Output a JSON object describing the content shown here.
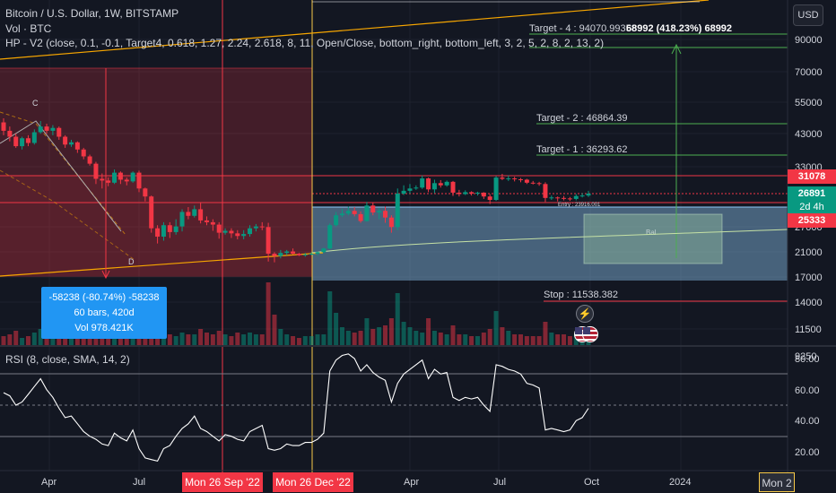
{
  "header": {
    "symbol_line": "Bitcoin / U.S. Dollar, 1W, BITSTAMP",
    "volume_line": "Vol · BTC",
    "indicator_line": "HP - V2 (close, 0.1, -0.1, Target4, 0.618, 1.27, 2.24, 2.618, 8, 11, Open/Close, bottom_right, bottom_left, 3, 2, 5, 2, 8, 2, 13, 2)"
  },
  "currency_button": "USD",
  "price_axis": {
    "labels": [
      "90000",
      "70000",
      "55000",
      "43000",
      "33000",
      "27000",
      "21000",
      "17000",
      "14000",
      "11500",
      "9250"
    ]
  },
  "price_tags": {
    "upper_box_edge": "31078",
    "last_price": "26891",
    "countdown": "2d 4h",
    "lower_box_edge": "25333"
  },
  "annotations": {
    "target4": "Target - 4 : 94070.99358",
    "target4_move": "68992 (418.23%) 68992",
    "target2": "Target - 2 : 46864.39",
    "target1": "Target - 1 : 36293.62",
    "entry": "Entry : 23916.001",
    "stop": "Stop : 11538.382",
    "wave_c": "C",
    "wave_d": "D",
    "ghost_label": "Bal"
  },
  "measure_box": {
    "line1": "-58238 (-80.74%) -58238",
    "line2": "60 bars, 420d",
    "line3": "Vol 978.421K"
  },
  "rsi": {
    "legend": "RSI (8, close, SMA, 14, 2)",
    "axis_labels": [
      "80.00",
      "60.00",
      "40.00",
      "20.00"
    ]
  },
  "time_axis": {
    "labels": [
      "Apr",
      "Jul",
      "Apr",
      "Jul",
      "Oct",
      "2024"
    ],
    "highlight_sep": "Mon 26 Sep '22",
    "highlight_dec": "Mon 26 Dec '22",
    "highlight_partial": "Mon 2"
  },
  "icons": {
    "event": "lightning-icon",
    "flags": "us-flag-icon"
  },
  "colors": {
    "background": "#131722",
    "bull": "#089981",
    "bear": "#f23645",
    "target_line": "#4caf50",
    "stop_line": "#f23645",
    "accent_blue": "#2196f3",
    "trend_line": "#f7a600"
  },
  "chart_data": {
    "type": "candlestick",
    "candles": [
      [
        47000,
        44000,
        48500,
        42500
      ],
      [
        44000,
        42000,
        45500,
        40500
      ],
      [
        42000,
        39000,
        43000,
        38500
      ],
      [
        39000,
        41500,
        42000,
        38000
      ],
      [
        41500,
        40000,
        42500,
        39000
      ],
      [
        40000,
        43500,
        44500,
        39500
      ],
      [
        43500,
        45500,
        47500,
        43000
      ],
      [
        45500,
        44000,
        46500,
        43000
      ],
      [
        44000,
        45000,
        46000,
        42500
      ],
      [
        45000,
        42000,
        45500,
        41000
      ],
      [
        42000,
        39500,
        42500,
        38500
      ],
      [
        39500,
        40200,
        41000,
        38800
      ],
      [
        40200,
        38000,
        40500,
        37000
      ],
      [
        38000,
        36000,
        38500,
        35200
      ],
      [
        36000,
        34000,
        36500,
        33500
      ],
      [
        34000,
        30200,
        34500,
        29000
      ],
      [
        30200,
        29800,
        31500,
        28000
      ],
      [
        29800,
        29300,
        30500,
        28500
      ],
      [
        29300,
        31700,
        32500,
        29000
      ],
      [
        31700,
        30000,
        32000,
        29000
      ],
      [
        30000,
        29600,
        30500,
        28700
      ],
      [
        29600,
        31700,
        32000,
        29300
      ],
      [
        31700,
        28000,
        32200,
        27200
      ],
      [
        28000,
        26300,
        28200,
        25300
      ],
      [
        26300,
        20500,
        26500,
        19800
      ],
      [
        20500,
        19200,
        21000,
        18200
      ],
      [
        19200,
        21000,
        21500,
        18600
      ],
      [
        21000,
        19900,
        21500,
        19000
      ],
      [
        19900,
        20800,
        22000,
        19500
      ],
      [
        20800,
        23300,
        23800,
        20000
      ],
      [
        23300,
        22600,
        24200,
        22000
      ],
      [
        22600,
        23800,
        24500,
        22300
      ],
      [
        23800,
        21800,
        25000,
        21300
      ],
      [
        21800,
        21500,
        22500,
        21000
      ],
      [
        21500,
        21100,
        22000,
        20100
      ],
      [
        21100,
        19800,
        21500,
        18900
      ],
      [
        19800,
        20100,
        20500,
        19500
      ],
      [
        20100,
        19700,
        20500,
        19000
      ],
      [
        19700,
        19300,
        20200,
        18800
      ],
      [
        19300,
        19600,
        20200,
        18800
      ],
      [
        19600,
        20500,
        21000,
        19200
      ],
      [
        20500,
        20800,
        21200,
        20000
      ],
      [
        20800,
        20700,
        21500,
        20200
      ],
      [
        20700,
        16800,
        21400,
        15800
      ],
      [
        16800,
        16500,
        17000,
        15700
      ],
      [
        16500,
        16900,
        17300,
        16200
      ],
      [
        16900,
        17100,
        17300,
        16600
      ],
      [
        17100,
        16800,
        17500,
        16700
      ],
      [
        16800,
        16600,
        16900,
        16500
      ],
      [
        16600,
        16700,
        16900,
        16400
      ],
      [
        16700,
        16800,
        17000,
        16600
      ],
      [
        16800,
        17000,
        17100,
        16600
      ],
      [
        17000,
        17500,
        17600,
        16900
      ],
      [
        17500,
        21000,
        21300,
        17400
      ],
      [
        21000,
        22700,
        23300,
        20800
      ],
      [
        22700,
        23000,
        23900,
        22400
      ],
      [
        23000,
        23500,
        24300,
        22700
      ],
      [
        23500,
        22900,
        24200,
        22500
      ],
      [
        22900,
        21700,
        23400,
        21400
      ],
      [
        21700,
        24500,
        25200,
        21600
      ],
      [
        24500,
        23200,
        25000,
        22700
      ],
      [
        23200,
        23500,
        24000,
        22000
      ],
      [
        23500,
        22300,
        24300,
        21400
      ],
      [
        22300,
        20700,
        22700,
        19800
      ],
      [
        20700,
        26900,
        28000,
        20200
      ],
      [
        26900,
        27500,
        28700,
        26600
      ],
      [
        27500,
        28000,
        29000,
        26900
      ],
      [
        28000,
        28200,
        28700,
        27700
      ],
      [
        28200,
        30300,
        31000,
        27900
      ],
      [
        30300,
        27800,
        30500,
        27200
      ],
      [
        27800,
        29200,
        30000,
        27000
      ],
      [
        29200,
        28700,
        29900,
        28200
      ],
      [
        28700,
        29500,
        29800,
        28400
      ],
      [
        29500,
        27100,
        29700,
        26400
      ],
      [
        27100,
        26800,
        27700,
        26300
      ],
      [
        26800,
        27200,
        27600,
        26600
      ],
      [
        27200,
        26900,
        27400,
        26500
      ],
      [
        26900,
        27100,
        27300,
        26500
      ],
      [
        27100,
        26300,
        27200,
        25800
      ],
      [
        26300,
        25600,
        26800,
        24800
      ],
      [
        25600,
        30500,
        30900,
        25400
      ],
      [
        30500,
        30200,
        31400,
        29900
      ],
      [
        30200,
        30300,
        31000,
        29700
      ],
      [
        30300,
        30100,
        30700,
        29600
      ],
      [
        30100,
        30000,
        30400,
        29400
      ],
      [
        30000,
        29300,
        30200,
        29000
      ],
      [
        29300,
        29200,
        29700,
        28900
      ],
      [
        29200,
        29000,
        29500,
        28600
      ],
      [
        29000,
        26000,
        29400,
        25200
      ],
      [
        26000,
        26100,
        26500,
        25600
      ],
      [
        26100,
        26000,
        26300,
        25300
      ],
      [
        26000,
        25900,
        26400,
        25500
      ],
      [
        25900,
        25800,
        26200,
        25400
      ],
      [
        25800,
        26400,
        26800,
        25500
      ],
      [
        26400,
        26500,
        27000,
        26100
      ],
      [
        26500,
        26891,
        27500,
        26200
      ]
    ],
    "levels": {
      "target4": 94070.99,
      "target2": 46864.39,
      "target1": 36293.62,
      "entry": 23916.0,
      "stop": 11538.38
    },
    "rsi_values": [
      58,
      56,
      50,
      52,
      57,
      62,
      67,
      60,
      55,
      48,
      42,
      43,
      38,
      33,
      30,
      28,
      25,
      24,
      32,
      29,
      27,
      34,
      22,
      16,
      15,
      14,
      22,
      24,
      30,
      35,
      38,
      43,
      35,
      33,
      30,
      27,
      31,
      30,
      28,
      27,
      33,
      35,
      37,
      22,
      21,
      22,
      25,
      24,
      24,
      26,
      26,
      28,
      32,
      72,
      79,
      82,
      83,
      80,
      72,
      76,
      71,
      68,
      66,
      52,
      64,
      70,
      73,
      76,
      79,
      67,
      73,
      70,
      71,
      55,
      53,
      55,
      54,
      55,
      50,
      46,
      76,
      75,
      73,
      72,
      70,
      64,
      63,
      61,
      34,
      35,
      34,
      33,
      34,
      40,
      42,
      48
    ],
    "rsi_levels": [
      70,
      50,
      30
    ],
    "price_scale": "log"
  }
}
